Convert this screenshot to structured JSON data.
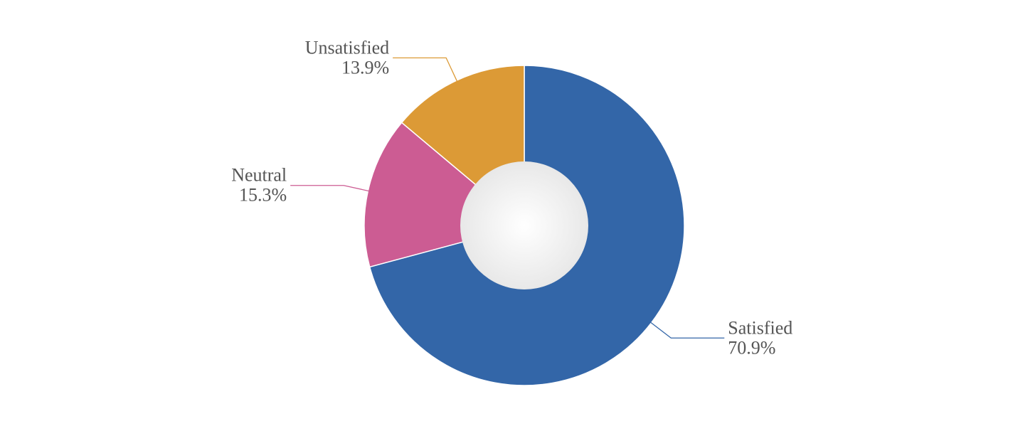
{
  "chart_data": {
    "type": "donut",
    "categories": [
      "Satisfied",
      "Neutral",
      "Unsatisfied"
    ],
    "values": [
      70.9,
      15.3,
      13.9
    ],
    "value_labels": [
      "70.9%",
      "15.3%",
      "13.9%"
    ],
    "colors": [
      "#3366a8",
      "#cc5c93",
      "#dc9a36"
    ]
  }
}
